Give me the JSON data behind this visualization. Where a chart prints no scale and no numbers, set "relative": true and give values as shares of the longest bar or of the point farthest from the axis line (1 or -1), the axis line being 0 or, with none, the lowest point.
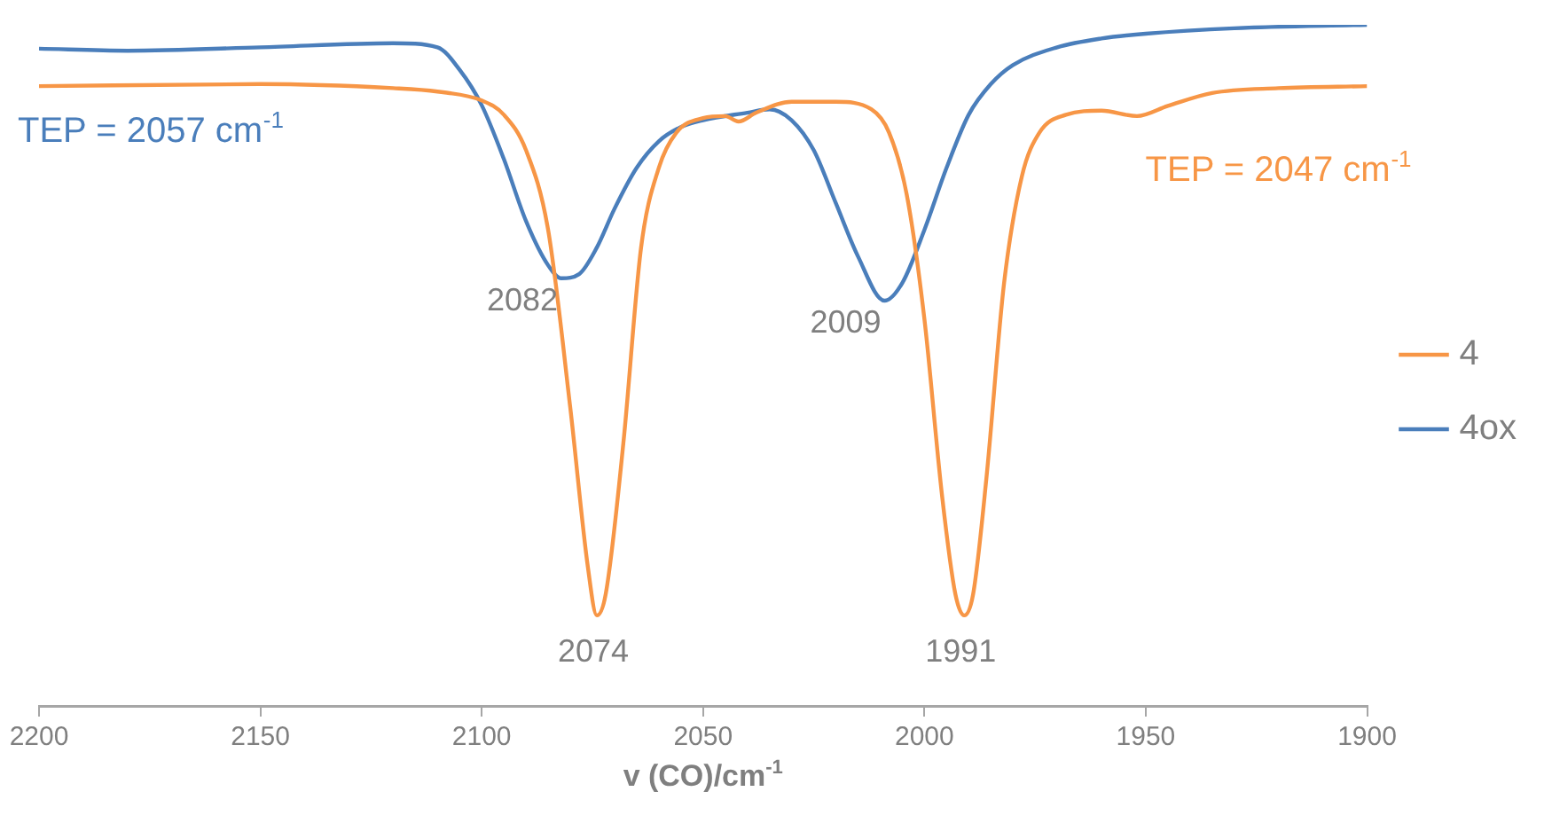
{
  "chart_data": {
    "type": "line",
    "relative": true,
    "xlabel": "v (CO)/cm$^{-1}$",
    "xlim": [
      2200,
      1900
    ],
    "xticks": [
      2200,
      2150,
      2100,
      2050,
      2000,
      1950,
      1900
    ],
    "legend": "right",
    "marker": "none",
    "line_style": "solid",
    "grid": false,
    "tick_labels": "x",
    "series": [
      {
        "name": "4",
        "color": "#f79646",
        "x": [
          2200,
          2150,
          2120,
          2110,
          2100,
          2095,
          2090,
          2085,
          2080,
          2076,
          2074,
          2072,
          2068,
          2064,
          2060,
          2056,
          2050,
          2045,
          2042,
          2038,
          2030,
          2020,
          2012,
          2008,
          2004,
          2000,
          1996,
          1993,
          1991,
          1989,
          1986,
          1982,
          1978,
          1974,
          1968,
          1960,
          1952,
          1945,
          1935,
          1920,
          1900
        ],
        "values": [
          0.91,
          0.913,
          0.907,
          0.902,
          0.889,
          0.868,
          0.816,
          0.699,
          0.438,
          0.203,
          0.133,
          0.164,
          0.386,
          0.673,
          0.79,
          0.842,
          0.863,
          0.866,
          0.858,
          0.871,
          0.887,
          0.887,
          0.876,
          0.842,
          0.751,
          0.568,
          0.308,
          0.164,
          0.133,
          0.164,
          0.334,
          0.621,
          0.777,
          0.842,
          0.868,
          0.874,
          0.866,
          0.881,
          0.9,
          0.907,
          0.91
        ]
      },
      {
        "name": "4ox",
        "color": "#4a7ebb",
        "x": [
          2200,
          2180,
          2150,
          2120,
          2110,
          2105,
          2100,
          2095,
          2090,
          2085,
          2082,
          2078,
          2074,
          2070,
          2065,
          2060,
          2055,
          2050,
          2040,
          2035,
          2030,
          2025,
          2020,
          2015,
          2009,
          2005,
          2000,
          1995,
          1990,
          1985,
          1980,
          1970,
          1960,
          1950,
          1930,
          1900
        ],
        "values": [
          0.965,
          0.962,
          0.967,
          0.973,
          0.967,
          0.934,
          0.882,
          0.803,
          0.712,
          0.647,
          0.628,
          0.634,
          0.673,
          0.73,
          0.79,
          0.829,
          0.85,
          0.86,
          0.871,
          0.876,
          0.86,
          0.816,
          0.738,
          0.66,
          0.595,
          0.621,
          0.699,
          0.79,
          0.868,
          0.913,
          0.941,
          0.967,
          0.98,
          0.987,
          0.995,
          1.0
        ]
      }
    ],
    "annotations": [
      "TEP = 2057 cm$^{-1}$",
      "TEP = 2047 cm$^{-1}$",
      {
        "text": "2082",
        "x": 2082,
        "y": 0.628
      },
      {
        "text": "2009",
        "x": 2009,
        "y": 0.595
      },
      {
        "text": "2074",
        "x": 2074,
        "y": 0.133
      },
      {
        "text": "1991",
        "x": 1991,
        "y": 0.133
      }
    ]
  }
}
